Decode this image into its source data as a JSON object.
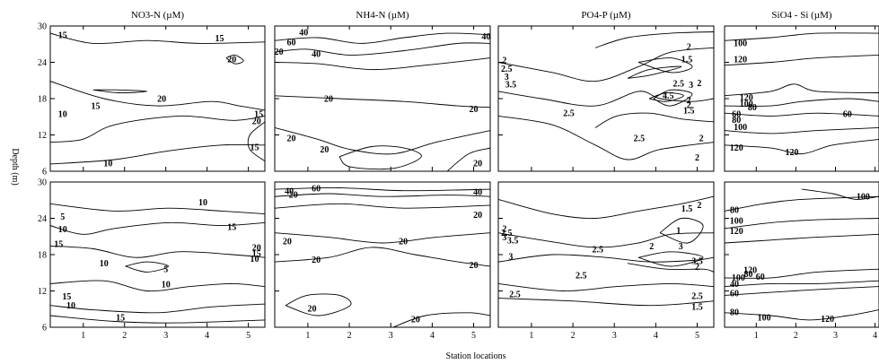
{
  "figure": {
    "xlabel": "Station locations",
    "ylabel": "Depth (m)"
  },
  "chart_data": [
    {
      "type": "contour",
      "title": "NO3-N (µM)",
      "row": "top",
      "x_ticks": [
        "1",
        "2",
        "3",
        "4",
        "5"
      ],
      "y_ticks": [
        "6",
        "12",
        "18",
        "24",
        "30"
      ],
      "xlim": [
        0.2,
        5.4
      ],
      "ylim": [
        6,
        30
      ],
      "contour_labels": [
        {
          "value": "15",
          "x": 0.5,
          "y": 28.5
        },
        {
          "value": "15",
          "x": 4.3,
          "y": 28
        },
        {
          "value": "20",
          "x": 4.6,
          "y": 24.5
        },
        {
          "value": "20",
          "x": 2.9,
          "y": 18
        },
        {
          "value": "15",
          "x": 1.3,
          "y": 16.8
        },
        {
          "value": "10",
          "x": 0.5,
          "y": 15.5
        },
        {
          "value": "15",
          "x": 5.25,
          "y": 15.5
        },
        {
          "value": "20",
          "x": 5.2,
          "y": 14.3
        },
        {
          "value": "15",
          "x": 5.15,
          "y": 10
        },
        {
          "value": "10",
          "x": 1.6,
          "y": 7.3
        }
      ]
    },
    {
      "type": "contour",
      "title": "NH4-N (µM)",
      "row": "top",
      "x_ticks": [
        "1",
        "2",
        "3",
        "4",
        "5"
      ],
      "y_ticks": [
        "6",
        "12",
        "18",
        "24",
        "30"
      ],
      "xlim": [
        0.2,
        5.4
      ],
      "ylim": [
        6,
        30
      ],
      "contour_labels": [
        {
          "value": "40",
          "x": 0.9,
          "y": 29
        },
        {
          "value": "60",
          "x": 0.6,
          "y": 27.3
        },
        {
          "value": "20",
          "x": 0.3,
          "y": 25.8
        },
        {
          "value": "40",
          "x": 1.2,
          "y": 25.4
        },
        {
          "value": "40",
          "x": 5.3,
          "y": 28.3
        },
        {
          "value": "20",
          "x": 1.5,
          "y": 18
        },
        {
          "value": "20",
          "x": 5.0,
          "y": 16.3
        },
        {
          "value": "20",
          "x": 0.6,
          "y": 11.5
        },
        {
          "value": "20",
          "x": 1.4,
          "y": 9.6
        },
        {
          "value": "20",
          "x": 5.1,
          "y": 7.3
        }
      ]
    },
    {
      "type": "contour",
      "title": "PO4-P (µM)",
      "row": "top",
      "x_ticks": [
        "1",
        "2",
        "3",
        "4",
        "5"
      ],
      "y_ticks": [
        "6",
        "12",
        "18",
        "24",
        "30"
      ],
      "xlim": [
        0.2,
        5.4
      ],
      "ylim": [
        6,
        30
      ],
      "contour_labels": [
        {
          "value": "2",
          "x": 0.35,
          "y": 24.4
        },
        {
          "value": "2.5",
          "x": 0.4,
          "y": 23
        },
        {
          "value": "3",
          "x": 0.4,
          "y": 21.6
        },
        {
          "value": "3.5",
          "x": 0.5,
          "y": 20.4
        },
        {
          "value": "2",
          "x": 4.8,
          "y": 26.6
        },
        {
          "value": "1.5",
          "x": 4.75,
          "y": 24.5
        },
        {
          "value": "2.5",
          "x": 4.55,
          "y": 20.5
        },
        {
          "value": "3",
          "x": 4.85,
          "y": 20.3
        },
        {
          "value": "2",
          "x": 5.05,
          "y": 20.6
        },
        {
          "value": "4.5",
          "x": 4.3,
          "y": 18.5
        },
        {
          "value": "2",
          "x": 4.8,
          "y": 17.8
        },
        {
          "value": "2",
          "x": 4.8,
          "y": 17
        },
        {
          "value": "1.5",
          "x": 4.8,
          "y": 16.1
        },
        {
          "value": "2.5",
          "x": 1.9,
          "y": 15.6
        },
        {
          "value": "2.5",
          "x": 3.6,
          "y": 11.5
        },
        {
          "value": "2",
          "x": 5.1,
          "y": 11.5
        },
        {
          "value": "2",
          "x": 5.0,
          "y": 8.3
        }
      ]
    },
    {
      "type": "contour",
      "title": "SiO4 - Si (µM)",
      "row": "top",
      "x_ticks": [
        "1",
        "2",
        "3",
        "4"
      ],
      "y_ticks": [
        "6",
        "12",
        "18",
        "24",
        "30"
      ],
      "xlim": [
        0.2,
        4.1
      ],
      "ylim": [
        6,
        30
      ],
      "contour_labels": [
        {
          "value": "100",
          "x": 0.6,
          "y": 27.2
        },
        {
          "value": "120",
          "x": 0.6,
          "y": 24.5
        },
        {
          "value": "120",
          "x": 0.75,
          "y": 18.2
        },
        {
          "value": "100",
          "x": 0.75,
          "y": 17.2
        },
        {
          "value": "80",
          "x": 0.9,
          "y": 16.6
        },
        {
          "value": "60",
          "x": 0.5,
          "y": 15.5
        },
        {
          "value": "80",
          "x": 0.5,
          "y": 14.5
        },
        {
          "value": "60",
          "x": 3.3,
          "y": 15.5
        },
        {
          "value": "100",
          "x": 0.6,
          "y": 13.3
        },
        {
          "value": "120",
          "x": 0.5,
          "y": 9.9
        },
        {
          "value": "120",
          "x": 1.9,
          "y": 9.2
        }
      ]
    },
    {
      "type": "contour",
      "title": "",
      "row": "bottom",
      "x_ticks": [
        "1",
        "2",
        "3",
        "4",
        "5"
      ],
      "y_ticks": [
        "6",
        "12",
        "18",
        "24",
        "30"
      ],
      "xlim": [
        0.2,
        5.4
      ],
      "ylim": [
        6,
        30
      ],
      "contour_labels": [
        {
          "value": "5",
          "x": 0.5,
          "y": 24.3
        },
        {
          "value": "10",
          "x": 3.9,
          "y": 26.7
        },
        {
          "value": "10",
          "x": 0.5,
          "y": 22.2
        },
        {
          "value": "15",
          "x": 4.6,
          "y": 22.6
        },
        {
          "value": "15",
          "x": 0.4,
          "y": 19.8
        },
        {
          "value": "20",
          "x": 5.2,
          "y": 19.2
        },
        {
          "value": "15",
          "x": 5.2,
          "y": 18.2
        },
        {
          "value": "10",
          "x": 5.15,
          "y": 17.3
        },
        {
          "value": "10",
          "x": 1.5,
          "y": 16.6
        },
        {
          "value": "5",
          "x": 3.0,
          "y": 15.6
        },
        {
          "value": "10",
          "x": 3.0,
          "y": 13.1
        },
        {
          "value": "15",
          "x": 0.6,
          "y": 11.1
        },
        {
          "value": "10",
          "x": 0.7,
          "y": 9.6
        },
        {
          "value": "15",
          "x": 1.9,
          "y": 7.6
        }
      ]
    },
    {
      "type": "contour",
      "title": "",
      "row": "bottom",
      "x_ticks": [
        "1",
        "2",
        "3",
        "4",
        "5"
      ],
      "y_ticks": [
        "6",
        "12",
        "18",
        "24",
        "30"
      ],
      "xlim": [
        0.2,
        5.4
      ],
      "ylim": [
        6,
        30
      ],
      "contour_labels": [
        {
          "value": "40",
          "x": 0.55,
          "y": 28.5
        },
        {
          "value": "20",
          "x": 0.65,
          "y": 27.9
        },
        {
          "value": "60",
          "x": 1.2,
          "y": 29
        },
        {
          "value": "40",
          "x": 5.1,
          "y": 28.4
        },
        {
          "value": "20",
          "x": 5.1,
          "y": 24.6
        },
        {
          "value": "20",
          "x": 0.5,
          "y": 20.2
        },
        {
          "value": "20",
          "x": 3.3,
          "y": 20.2
        },
        {
          "value": "20",
          "x": 1.2,
          "y": 17.2
        },
        {
          "value": "20",
          "x": 5.0,
          "y": 16.3
        },
        {
          "value": "20",
          "x": 1.1,
          "y": 9.1
        },
        {
          "value": "20",
          "x": 3.6,
          "y": 7.3
        }
      ]
    },
    {
      "type": "contour",
      "title": "",
      "row": "bottom",
      "x_ticks": [
        "1",
        "2",
        "3",
        "4",
        "5"
      ],
      "y_ticks": [
        "6",
        "12",
        "18",
        "24",
        "30"
      ],
      "xlim": [
        0.2,
        5.4
      ],
      "ylim": [
        6,
        30
      ],
      "contour_labels": [
        {
          "value": "2",
          "x": 0.35,
          "y": 22.3
        },
        {
          "value": "2.5",
          "x": 0.4,
          "y": 21.6
        },
        {
          "value": "3",
          "x": 0.35,
          "y": 20.9
        },
        {
          "value": "3.5",
          "x": 0.55,
          "y": 20.4
        },
        {
          "value": "1.5",
          "x": 4.75,
          "y": 25.6
        },
        {
          "value": "2",
          "x": 5.05,
          "y": 26.2
        },
        {
          "value": "1",
          "x": 4.55,
          "y": 22
        },
        {
          "value": "2",
          "x": 3.9,
          "y": 19.4
        },
        {
          "value": "3",
          "x": 4.6,
          "y": 19.4
        },
        {
          "value": "2.5",
          "x": 2.6,
          "y": 18.9
        },
        {
          "value": "3",
          "x": 0.5,
          "y": 17.7
        },
        {
          "value": "3.5",
          "x": 5.0,
          "y": 17
        },
        {
          "value": "2",
          "x": 5.0,
          "y": 16
        },
        {
          "value": "2.5",
          "x": 2.2,
          "y": 14.6
        },
        {
          "value": "2.5",
          "x": 0.6,
          "y": 11.5
        },
        {
          "value": "2.5",
          "x": 5.0,
          "y": 11.2
        },
        {
          "value": "1.5",
          "x": 5.0,
          "y": 9.4
        }
      ]
    },
    {
      "type": "contour",
      "title": "",
      "row": "bottom",
      "x_ticks": [
        "1",
        "2",
        "3",
        "4"
      ],
      "y_ticks": [
        "6",
        "12",
        "18",
        "24",
        "30"
      ],
      "xlim": [
        0.2,
        4.1
      ],
      "ylim": [
        6,
        30
      ],
      "contour_labels": [
        {
          "value": "100",
          "x": 3.7,
          "y": 27.6
        },
        {
          "value": "80",
          "x": 0.45,
          "y": 25.4
        },
        {
          "value": "100",
          "x": 0.5,
          "y": 23.6
        },
        {
          "value": "120",
          "x": 0.5,
          "y": 21.9
        },
        {
          "value": "120",
          "x": 0.85,
          "y": 15.5
        },
        {
          "value": "80",
          "x": 0.8,
          "y": 14.8
        },
        {
          "value": "100",
          "x": 0.55,
          "y": 14.2
        },
        {
          "value": "60",
          "x": 1.1,
          "y": 14.4
        },
        {
          "value": "40",
          "x": 0.45,
          "y": 13.2
        },
        {
          "value": "60",
          "x": 0.45,
          "y": 11.6
        },
        {
          "value": "80",
          "x": 0.45,
          "y": 8.5
        },
        {
          "value": "100",
          "x": 1.2,
          "y": 7.6
        },
        {
          "value": "120",
          "x": 2.8,
          "y": 7.4
        }
      ]
    }
  ]
}
